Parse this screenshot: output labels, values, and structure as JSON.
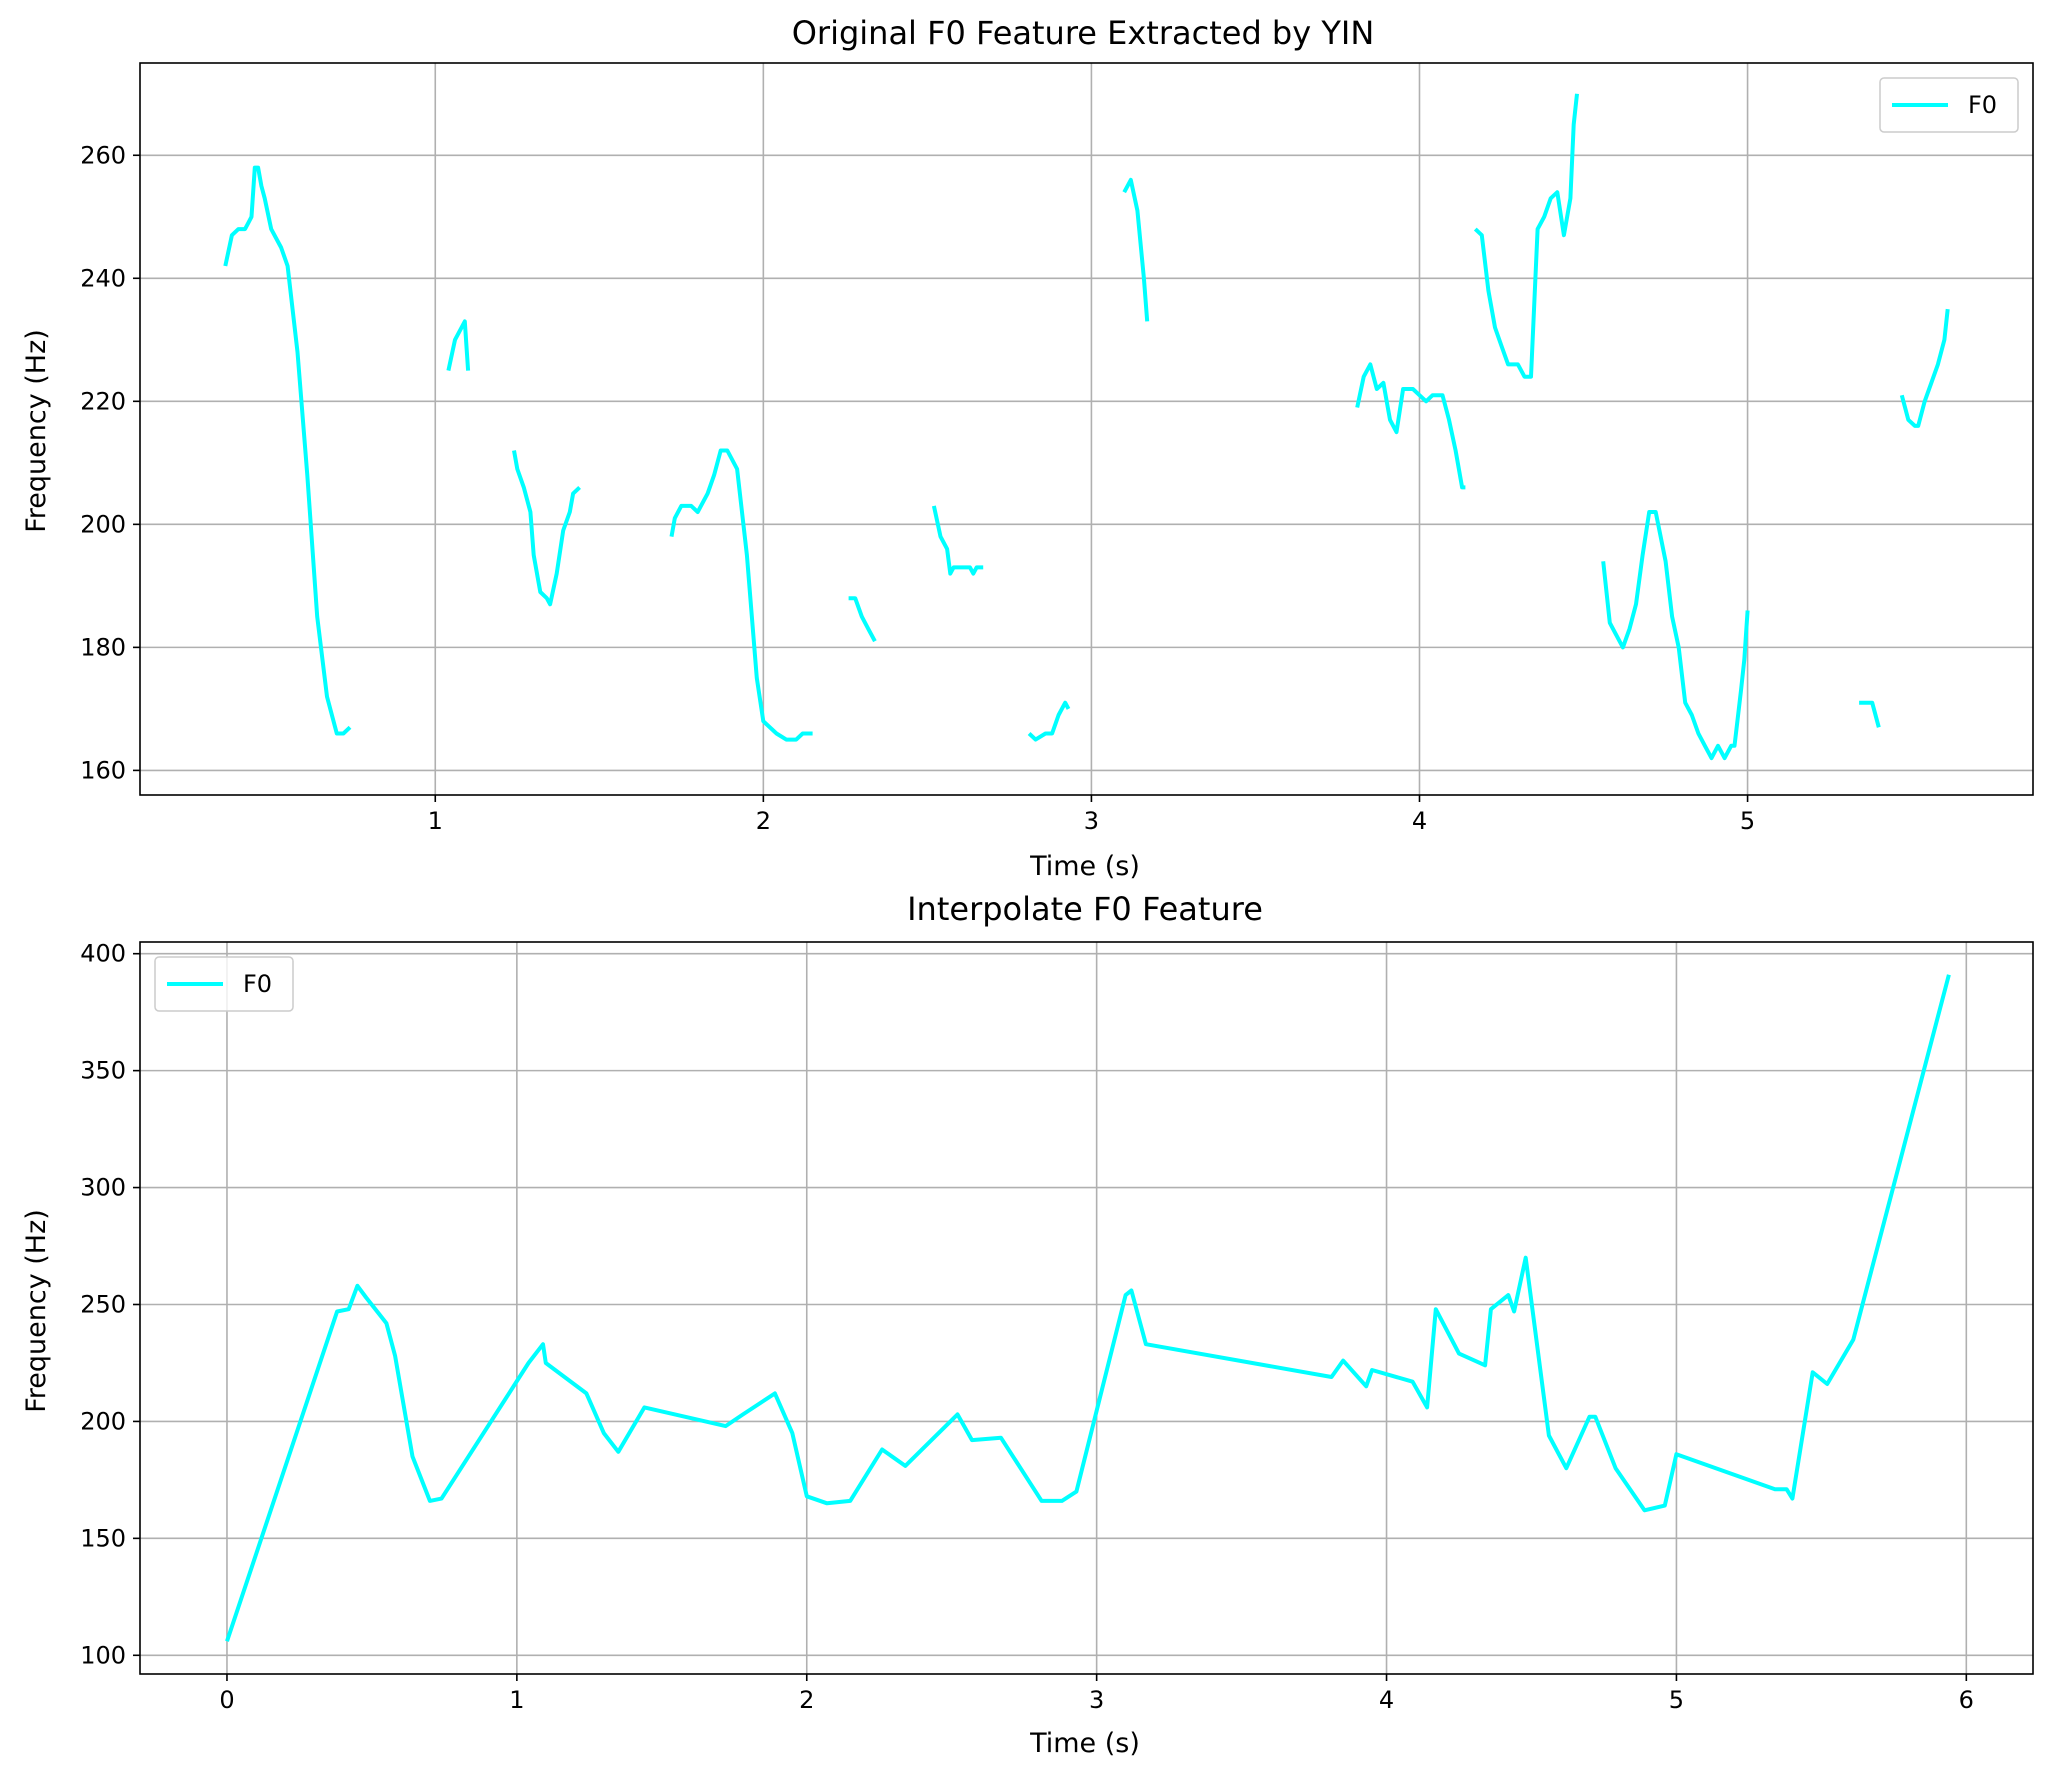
{
  "line_color": "#00ffff",
  "chart_data": [
    {
      "type": "line",
      "title": "Original F0 Feature Extracted by YIN",
      "xlabel": "Time (s)",
      "ylabel": "Frequency (Hz)",
      "xlim": [
        0.1,
        5.87
      ],
      "ylim": [
        156,
        275
      ],
      "xticks": [
        1,
        2,
        3,
        4,
        5
      ],
      "yticks": [
        160,
        180,
        200,
        220,
        240,
        260
      ],
      "grid": true,
      "legend_position": "top-right",
      "series": [
        {
          "name": "F0",
          "color": "#00ffff",
          "segments": [
            [
              [
                0.36,
                242
              ],
              [
                0.38,
                247
              ],
              [
                0.4,
                248
              ],
              [
                0.42,
                248
              ],
              [
                0.43,
                249
              ],
              [
                0.44,
                250
              ],
              [
                0.45,
                258
              ],
              [
                0.46,
                258
              ],
              [
                0.47,
                255
              ],
              [
                0.48,
                253
              ],
              [
                0.5,
                248
              ],
              [
                0.53,
                245
              ],
              [
                0.55,
                242
              ],
              [
                0.58,
                228
              ],
              [
                0.61,
                208
              ],
              [
                0.64,
                185
              ],
              [
                0.67,
                172
              ],
              [
                0.7,
                166
              ],
              [
                0.72,
                166
              ],
              [
                0.74,
                167
              ]
            ],
            [
              [
                1.04,
                225
              ],
              [
                1.06,
                230
              ],
              [
                1.09,
                233
              ],
              [
                1.1,
                225
              ]
            ],
            [
              [
                1.24,
                212
              ],
              [
                1.25,
                209
              ],
              [
                1.27,
                206
              ],
              [
                1.29,
                202
              ],
              [
                1.3,
                195
              ],
              [
                1.32,
                189
              ],
              [
                1.34,
                188
              ],
              [
                1.35,
                187
              ],
              [
                1.37,
                192
              ],
              [
                1.39,
                199
              ],
              [
                1.41,
                202
              ],
              [
                1.42,
                205
              ],
              [
                1.44,
                206
              ]
            ],
            [
              [
                1.72,
                198
              ],
              [
                1.73,
                201
              ],
              [
                1.75,
                203
              ],
              [
                1.78,
                203
              ],
              [
                1.8,
                202
              ],
              [
                1.83,
                205
              ],
              [
                1.85,
                208
              ],
              [
                1.87,
                212
              ],
              [
                1.89,
                212
              ],
              [
                1.92,
                209
              ],
              [
                1.95,
                195
              ],
              [
                1.98,
                175
              ],
              [
                2.0,
                168
              ],
              [
                2.04,
                166
              ],
              [
                2.07,
                165
              ],
              [
                2.1,
                165
              ],
              [
                2.12,
                166
              ],
              [
                2.15,
                166
              ]
            ],
            [
              [
                2.26,
                188
              ],
              [
                2.28,
                188
              ],
              [
                2.3,
                185
              ],
              [
                2.32,
                183
              ],
              [
                2.34,
                181
              ]
            ],
            [
              [
                2.52,
                203
              ],
              [
                2.54,
                198
              ],
              [
                2.56,
                196
              ],
              [
                2.57,
                192
              ],
              [
                2.58,
                193
              ],
              [
                2.6,
                193
              ],
              [
                2.63,
                193
              ],
              [
                2.64,
                192
              ],
              [
                2.65,
                193
              ],
              [
                2.67,
                193
              ]
            ],
            [
              [
                2.81,
                166
              ],
              [
                2.83,
                165
              ],
              [
                2.86,
                166
              ],
              [
                2.88,
                166
              ],
              [
                2.9,
                169
              ],
              [
                2.92,
                171
              ],
              [
                2.93,
                170
              ]
            ],
            [
              [
                3.1,
                254
              ],
              [
                3.12,
                256
              ],
              [
                3.14,
                251
              ],
              [
                3.16,
                240
              ],
              [
                3.17,
                233
              ]
            ],
            [
              [
                3.81,
                219
              ],
              [
                3.83,
                224
              ],
              [
                3.85,
                226
              ],
              [
                3.87,
                222
              ],
              [
                3.89,
                223
              ],
              [
                3.91,
                217
              ],
              [
                3.93,
                215
              ],
              [
                3.95,
                222
              ],
              [
                3.98,
                222
              ],
              [
                4.0,
                221
              ],
              [
                4.02,
                220
              ],
              [
                4.04,
                221
              ],
              [
                4.07,
                221
              ],
              [
                4.09,
                217
              ],
              [
                4.11,
                212
              ],
              [
                4.13,
                206
              ],
              [
                4.14,
                206
              ]
            ],
            [
              [
                4.17,
                248
              ],
              [
                4.19,
                247
              ],
              [
                4.21,
                238
              ],
              [
                4.23,
                232
              ],
              [
                4.25,
                229
              ],
              [
                4.27,
                226
              ],
              [
                4.3,
                226
              ],
              [
                4.32,
                224
              ],
              [
                4.34,
                224
              ],
              [
                4.36,
                248
              ],
              [
                4.38,
                250
              ],
              [
                4.4,
                253
              ],
              [
                4.42,
                254
              ],
              [
                4.44,
                247
              ],
              [
                4.46,
                253
              ],
              [
                4.47,
                265
              ],
              [
                4.48,
                270
              ]
            ],
            [
              [
                4.56,
                194
              ],
              [
                4.58,
                184
              ],
              [
                4.6,
                182
              ],
              [
                4.62,
                180
              ],
              [
                4.64,
                183
              ],
              [
                4.66,
                187
              ],
              [
                4.68,
                195
              ],
              [
                4.7,
                202
              ],
              [
                4.72,
                202
              ],
              [
                4.75,
                194
              ],
              [
                4.77,
                185
              ],
              [
                4.79,
                180
              ],
              [
                4.81,
                171
              ],
              [
                4.83,
                169
              ],
              [
                4.85,
                166
              ],
              [
                4.87,
                164
              ],
              [
                4.89,
                162
              ],
              [
                4.91,
                164
              ],
              [
                4.93,
                162
              ],
              [
                4.95,
                164
              ],
              [
                4.96,
                164
              ],
              [
                4.98,
                173
              ],
              [
                4.99,
                178
              ],
              [
                5.0,
                186
              ]
            ],
            [
              [
                5.34,
                171
              ],
              [
                5.38,
                171
              ],
              [
                5.4,
                167
              ]
            ],
            [
              [
                5.47,
                221
              ],
              [
                5.49,
                217
              ],
              [
                5.51,
                216
              ],
              [
                5.52,
                216
              ],
              [
                5.54,
                220
              ],
              [
                5.56,
                223
              ],
              [
                5.58,
                226
              ],
              [
                5.6,
                230
              ],
              [
                5.61,
                235
              ]
            ]
          ]
        }
      ]
    },
    {
      "type": "line",
      "title": "Interpolate F0 Feature",
      "xlabel": "Time (s)",
      "ylabel": "Frequency (Hz)",
      "xlim": [
        -0.3,
        6.23
      ],
      "ylim": [
        92,
        405
      ],
      "xticks": [
        0,
        1,
        2,
        3,
        4,
        5,
        6
      ],
      "yticks": [
        100,
        150,
        200,
        250,
        300,
        350,
        400
      ],
      "grid": true,
      "legend_position": "top-left",
      "series": [
        {
          "name": "F0",
          "color": "#00ffff",
          "segments": [
            [
              [
                0.0,
                106
              ],
              [
                0.38,
                247
              ],
              [
                0.42,
                248
              ],
              [
                0.45,
                258
              ],
              [
                0.48,
                253
              ],
              [
                0.55,
                242
              ],
              [
                0.58,
                228
              ],
              [
                0.64,
                185
              ],
              [
                0.7,
                166
              ],
              [
                0.74,
                167
              ],
              [
                1.04,
                225
              ],
              [
                1.09,
                233
              ],
              [
                1.1,
                225
              ],
              [
                1.24,
                212
              ],
              [
                1.3,
                195
              ],
              [
                1.35,
                187
              ],
              [
                1.44,
                206
              ],
              [
                1.72,
                198
              ],
              [
                1.78,
                203
              ],
              [
                1.89,
                212
              ],
              [
                1.95,
                195
              ],
              [
                2.0,
                168
              ],
              [
                2.07,
                165
              ],
              [
                2.15,
                166
              ],
              [
                2.26,
                188
              ],
              [
                2.34,
                181
              ],
              [
                2.52,
                203
              ],
              [
                2.57,
                192
              ],
              [
                2.67,
                193
              ],
              [
                2.81,
                166
              ],
              [
                2.88,
                166
              ],
              [
                2.93,
                170
              ],
              [
                3.1,
                254
              ],
              [
                3.12,
                256
              ],
              [
                3.17,
                233
              ],
              [
                3.81,
                219
              ],
              [
                3.85,
                226
              ],
              [
                3.93,
                215
              ],
              [
                3.95,
                222
              ],
              [
                4.09,
                217
              ],
              [
                4.14,
                206
              ],
              [
                4.17,
                248
              ],
              [
                4.25,
                229
              ],
              [
                4.34,
                224
              ],
              [
                4.36,
                248
              ],
              [
                4.42,
                254
              ],
              [
                4.44,
                247
              ],
              [
                4.48,
                270
              ],
              [
                4.56,
                194
              ],
              [
                4.62,
                180
              ],
              [
                4.7,
                202
              ],
              [
                4.72,
                202
              ],
              [
                4.79,
                180
              ],
              [
                4.89,
                162
              ],
              [
                4.96,
                164
              ],
              [
                5.0,
                186
              ],
              [
                5.34,
                171
              ],
              [
                5.38,
                171
              ],
              [
                5.4,
                167
              ],
              [
                5.47,
                221
              ],
              [
                5.52,
                216
              ],
              [
                5.61,
                235
              ],
              [
                5.94,
                391
              ]
            ]
          ]
        }
      ]
    }
  ]
}
